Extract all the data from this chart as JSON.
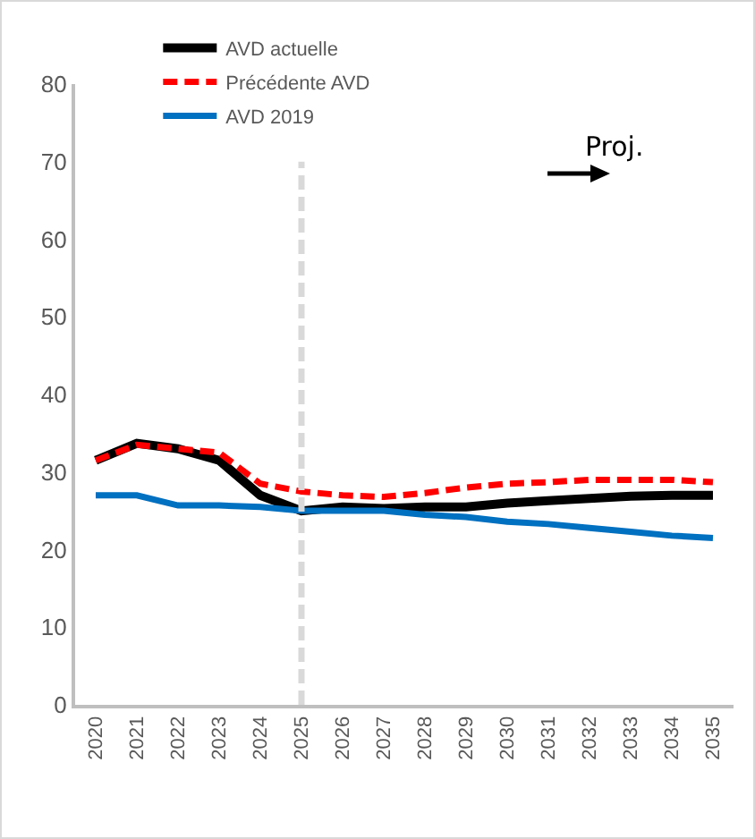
{
  "chart_data": {
    "type": "line",
    "categories": [
      "2020",
      "2021",
      "2022",
      "2023",
      "2024",
      "2025",
      "2026",
      "2027",
      "2028",
      "2029",
      "2030",
      "2031",
      "2032",
      "2033",
      "2034",
      "2035"
    ],
    "series": [
      {
        "name": "AVD actuelle",
        "color": "#000000",
        "line_style": "solid",
        "values": [
          31.5,
          33.7,
          33,
          31.5,
          27,
          25,
          25.5,
          25.3,
          25.5,
          25.5,
          26,
          26.3,
          26.6,
          26.9,
          27,
          27
        ]
      },
      {
        "name": "Précédente AVD",
        "color": "#ff0000",
        "line_style": "dashed",
        "values": [
          31.5,
          33.5,
          33,
          32.5,
          28.5,
          27.5,
          27,
          26.8,
          27.3,
          28,
          28.5,
          28.7,
          29,
          29,
          29,
          28.7
        ]
      },
      {
        "name": "AVD 2019",
        "color": "#0070c0",
        "line_style": "solid",
        "values": [
          27,
          27,
          25.7,
          25.7,
          25.5,
          25,
          25,
          25,
          24.5,
          24.2,
          23.6,
          23.3,
          22.8,
          22.3,
          21.8,
          21.5
        ]
      }
    ],
    "ylim": [
      0,
      80
    ],
    "yticks": [
      0,
      10,
      20,
      30,
      40,
      50,
      60,
      70,
      80
    ],
    "grid": false,
    "legend": "top left",
    "marker": "none",
    "ref_lines": [
      {
        "axis": "x",
        "value": "2025",
        "color": "#d9d9d9",
        "line_style": "dashed"
      }
    ],
    "annotations": [
      "Proj."
    ]
  }
}
